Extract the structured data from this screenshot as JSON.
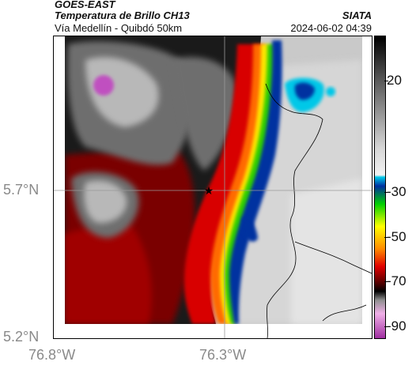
{
  "header": {
    "title": "GOES-EAST",
    "subtitle": "Temperatura de Brillo CH13",
    "route": "Vía Medellín - Quibdó 50km",
    "brand": "SIATA",
    "datetime": "2024-06-02 04:39"
  },
  "axes": {
    "lat_labels": [
      "5.7°N",
      "5.2°N"
    ],
    "lon_labels": [
      "76.8°W",
      "76.3°W"
    ]
  },
  "colorbar": {
    "ticks": [
      "20",
      "-30",
      "-50",
      "-70",
      "-90"
    ],
    "tick_values": [
      20,
      -30,
      -50,
      -70,
      -90
    ],
    "range": [
      -95,
      40
    ],
    "stops": [
      {
        "value": 40,
        "color": "#000000"
      },
      {
        "value": 20,
        "color": "#5a5a5a"
      },
      {
        "value": -10,
        "color": "#d6d6d6"
      },
      {
        "value": -22,
        "color": "#f2f2f2"
      },
      {
        "value": -23,
        "color": "#00c8e8"
      },
      {
        "value": -27,
        "color": "#0030a0"
      },
      {
        "value": -35,
        "color": "#00d000"
      },
      {
        "value": -45,
        "color": "#ffff00"
      },
      {
        "value": -55,
        "color": "#ff8c00"
      },
      {
        "value": -63,
        "color": "#e00000"
      },
      {
        "value": -70,
        "color": "#5a0000"
      },
      {
        "value": -74,
        "color": "#000000"
      },
      {
        "value": -78,
        "color": "#909090"
      },
      {
        "value": -84,
        "color": "#f0b0e8"
      },
      {
        "value": -95,
        "color": "#a030a0"
      }
    ]
  },
  "map": {
    "marker_icon": "star-icon",
    "cloud_colors": {
      "dark": "#1a1a1a",
      "gray": "#6e6e6e",
      "light": "#b8b8b8",
      "magenta": "#c050c0",
      "red_dark": "#7a0000",
      "red": "#d80000",
      "orange": "#ff6a00",
      "yellow": "#ffe600",
      "green": "#2fd000",
      "blue": "#0030a0",
      "cyan": "#00c8e8",
      "clear": "#d4d4d4"
    }
  }
}
